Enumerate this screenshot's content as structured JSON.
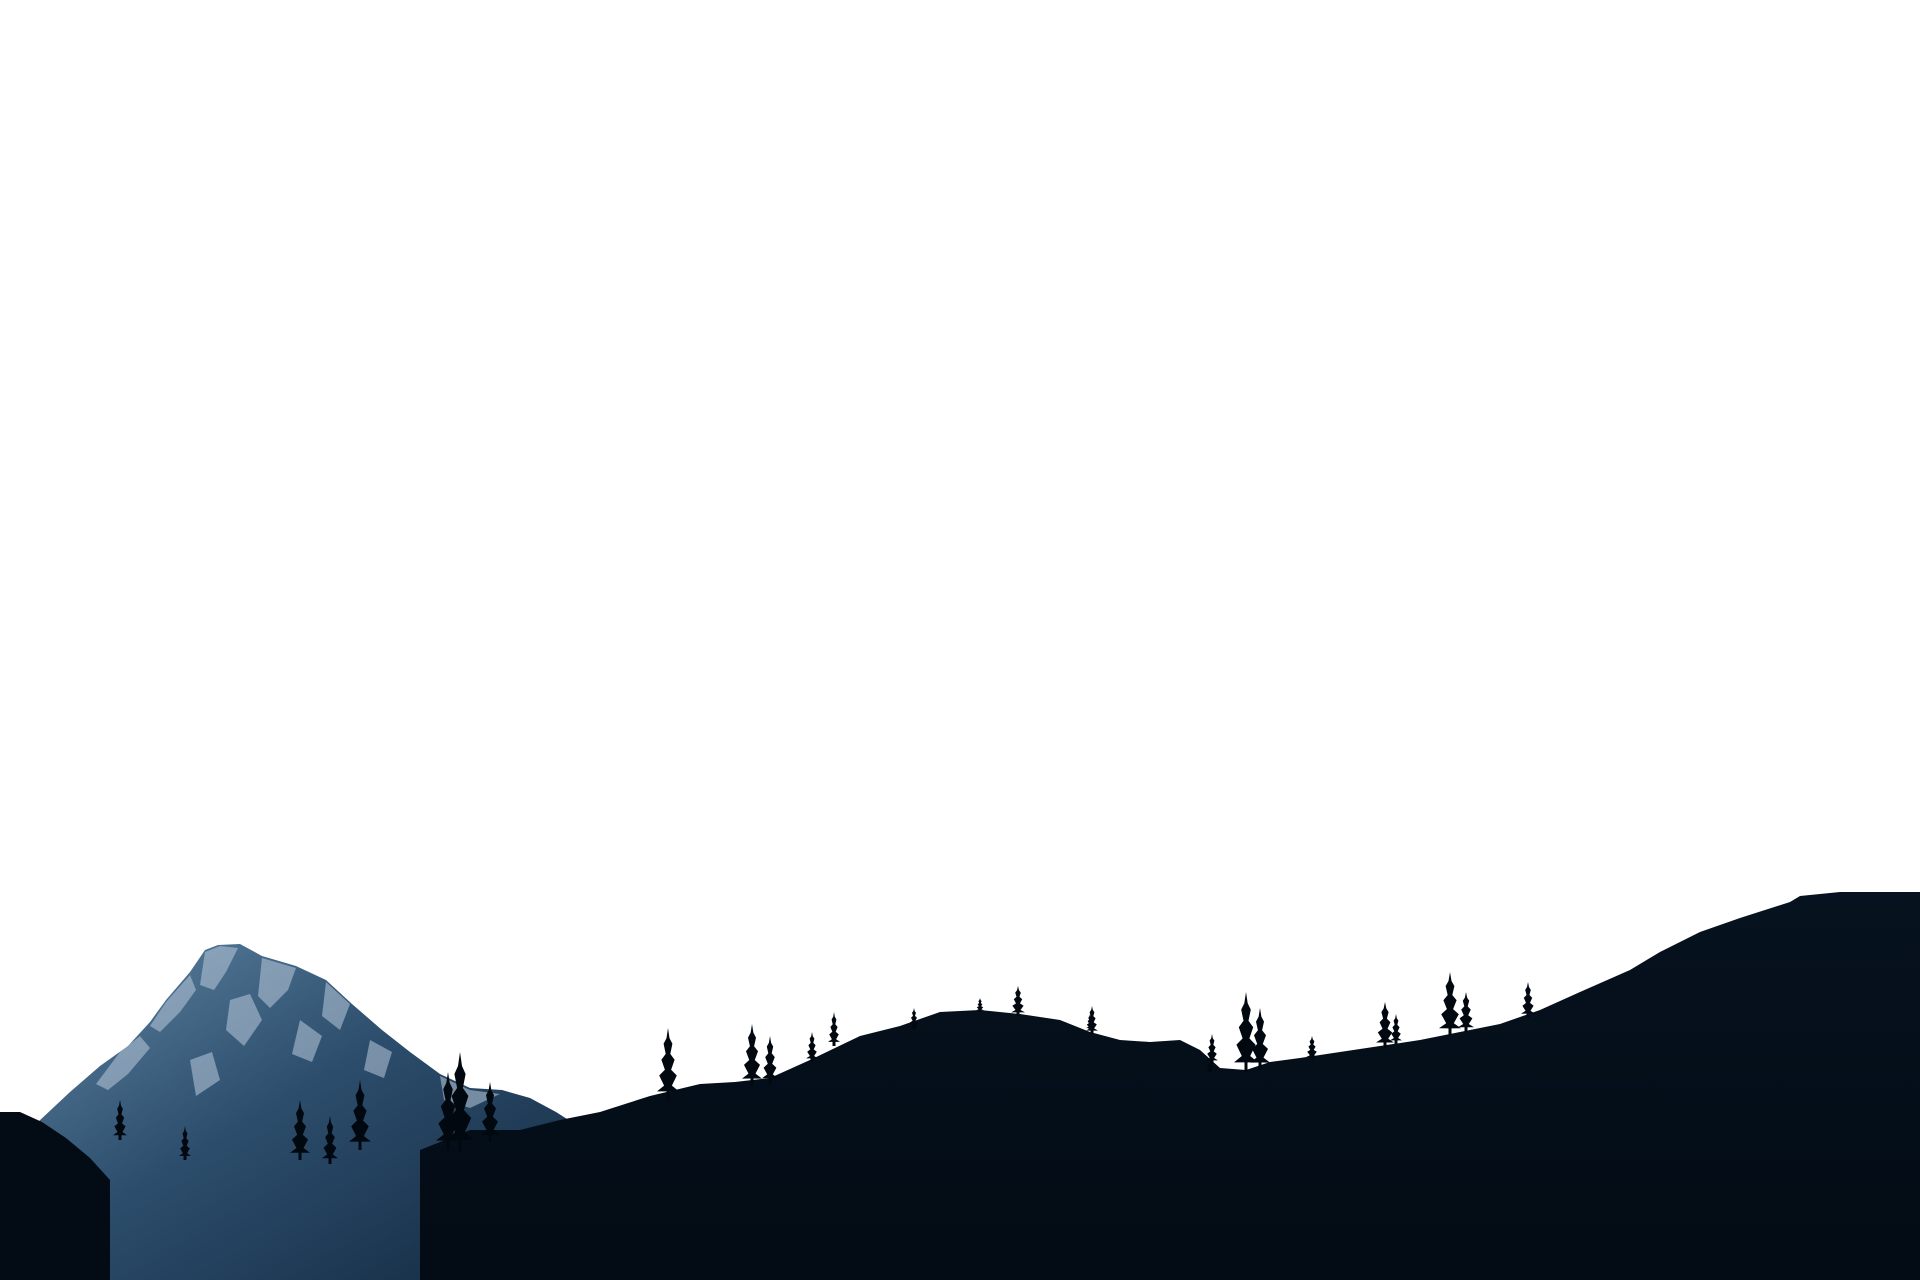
{
  "scene": {
    "subject": "mountain-and-forest-silhouette",
    "time_of_day": "dusk",
    "colors": {
      "sky": "#ffffff",
      "peak_light": "#5f84a3",
      "peak_mid": "#2c4d6c",
      "peak_dark": "#12283f",
      "snow": "#b9cadb",
      "ridge": "#030b14",
      "ridge_far": "#06121f",
      "trees": "#02080f"
    },
    "elements": [
      "sky",
      "snow-capped-peak",
      "left-foothill",
      "forested-ridge",
      "conifer-trees"
    ]
  }
}
